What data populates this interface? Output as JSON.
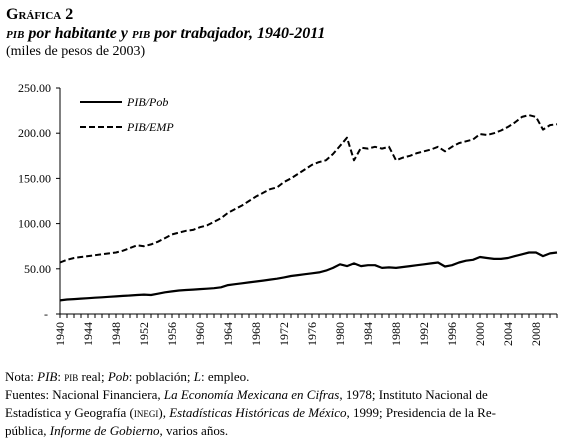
{
  "header": {
    "label": "Gráfica 2",
    "title": {
      "part1": "pib",
      "part2": " por habitante y ",
      "part3": "pib",
      "part4": " por trabajador, 1940-2011"
    },
    "subtitle": "(miles de pesos de 2003)"
  },
  "notes": {
    "line1": {
      "a": "Nota: ",
      "b": "PIB",
      "c": ": ",
      "d": "pib",
      "e": " real; ",
      "f": "Pob",
      "g": ": población; ",
      "h": "L",
      "i": ": empleo."
    },
    "line2": {
      "a": "Fuentes: Nacional Financiera, ",
      "b": "La Economía Mexicana en Cifras",
      "c": ", 1978; Instituto Nacional de"
    },
    "line3": {
      "a": "Estadística y Geografía (",
      "b": "inegi",
      "c": "), ",
      "d": "Estadísticas Históricas de México",
      "e": ", 1999; Presidencia de la Re-"
    },
    "line4": {
      "a": "pública, ",
      "b": "Informe de Gobierno",
      "c": ", varios años."
    }
  },
  "chart_data": {
    "type": "line",
    "x_start": 1940,
    "x_end": 2011,
    "ylim": [
      0,
      250
    ],
    "y_ticks": [
      0,
      50,
      100,
      150,
      200,
      250
    ],
    "y_tick_labels": [
      "-",
      "50.00",
      "100.00",
      "150.00",
      "200.00",
      "250.00"
    ],
    "x_tick_labels": [
      "1940",
      "1944",
      "1948",
      "1952",
      "1956",
      "1960",
      "1964",
      "1968",
      "1972",
      "1976",
      "1980",
      "1984",
      "1988",
      "1992",
      "1996",
      "2000",
      "2004",
      "2008"
    ],
    "grid": false,
    "legend_position": "top-left",
    "series": [
      {
        "name": "PIB/Pob",
        "style": "solid",
        "color": "#000000",
        "values": [
          15,
          16,
          16.5,
          17,
          17.5,
          18,
          18.5,
          19,
          19.5,
          20,
          20.5,
          21,
          21.5,
          21,
          22.5,
          24,
          25,
          26,
          26.5,
          27,
          27.5,
          28,
          28.5,
          29.5,
          32,
          33,
          34,
          35,
          36,
          37,
          38,
          39,
          40.5,
          42,
          43,
          44,
          45,
          46,
          48,
          51,
          55,
          53,
          56,
          53,
          54,
          54,
          51,
          51.5,
          51,
          52,
          53,
          54,
          55,
          56,
          57,
          52.5,
          54,
          57,
          59,
          60,
          63,
          62,
          61,
          61,
          62,
          64,
          66,
          68,
          68,
          64,
          67,
          68
        ]
      },
      {
        "name": "PIB/EMP",
        "style": "dashed",
        "color": "#000000",
        "values": [
          57,
          60,
          62,
          63,
          64,
          65,
          66,
          67,
          68,
          70,
          73,
          76,
          75,
          77,
          80,
          84,
          88,
          90,
          92,
          93,
          96,
          98,
          102,
          106,
          112,
          116,
          120,
          125,
          130,
          134,
          138,
          140,
          146,
          150,
          155,
          160,
          165,
          168,
          170,
          177,
          186,
          195,
          170,
          184,
          183,
          185,
          183,
          185,
          170,
          173,
          175,
          178,
          180,
          182,
          185,
          180,
          185,
          189,
          191,
          193,
          199,
          198,
          200,
          203,
          207,
          212,
          218,
          220,
          218,
          204,
          209,
          210
        ]
      }
    ]
  }
}
